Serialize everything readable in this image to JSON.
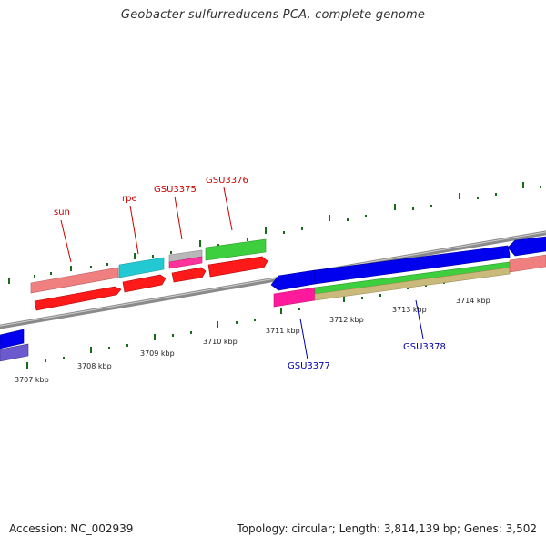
{
  "title": "Geobacter sulfurreducens PCA, complete genome",
  "footer": {
    "accession": "Accession: NC_002939",
    "summary": "Topology: circular; Length: 3,814,139 bp; Genes: 3,502"
  },
  "kbp_labels": [
    "3707 kbp",
    "3708 kbp",
    "3709 kbp",
    "3710 kbp",
    "3711 kbp",
    "3712 kbp",
    "3713 kbp",
    "3714 kbp"
  ],
  "gene_labels_top": [
    "sun",
    "rpe",
    "GSU3375",
    "GSU3376"
  ],
  "gene_labels_bottom": [
    "GSU3377",
    "GSU3378"
  ],
  "colors": {
    "top_label": "#cc0000",
    "bottom_label": "#0000aa",
    "tick": "#1a6b1a",
    "backbone": "#888888"
  }
}
